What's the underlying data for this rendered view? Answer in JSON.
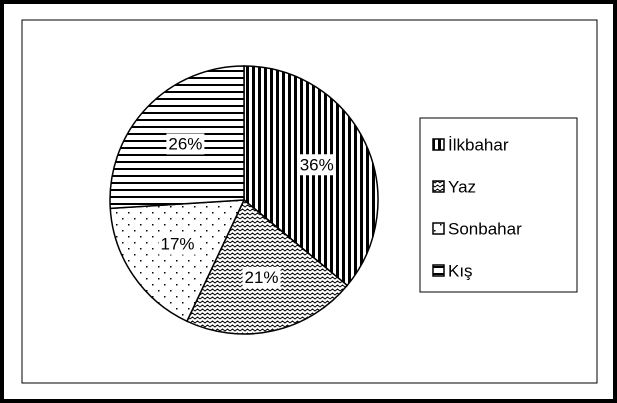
{
  "chart_data": {
    "type": "pie",
    "categories": [
      "İlkbahar",
      "Yaz",
      "Sonbahar",
      "Kış"
    ],
    "values": [
      36,
      21,
      17,
      26
    ],
    "value_labels": [
      "36%",
      "21%",
      "17%",
      "26%"
    ],
    "legend": "right"
  }
}
